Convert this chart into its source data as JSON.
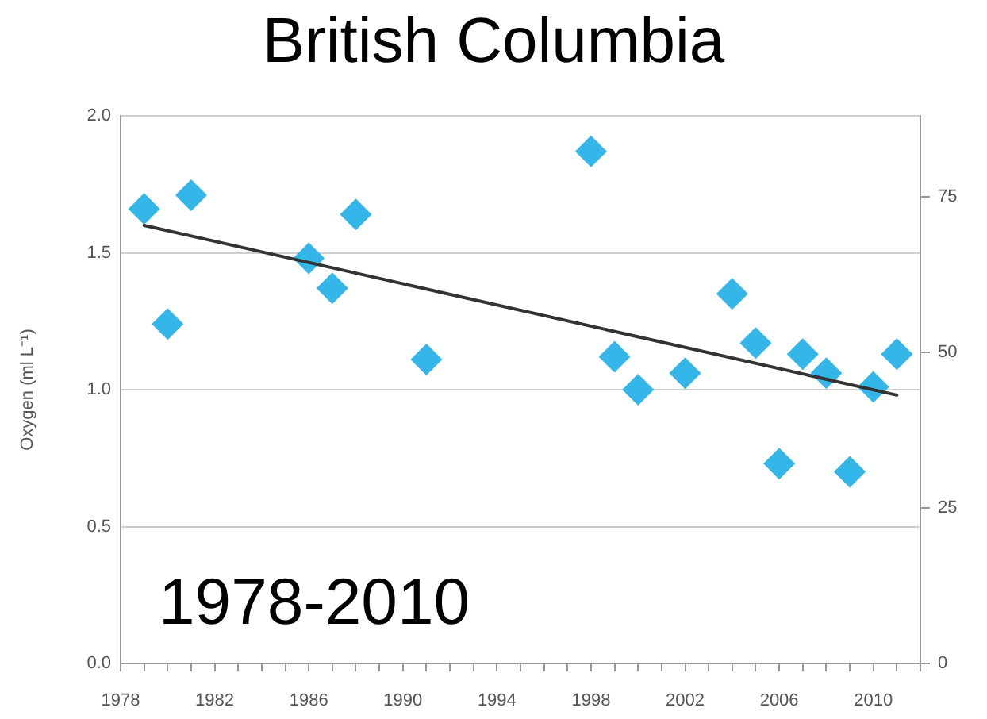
{
  "chart_data": {
    "type": "scatter",
    "title": "British Columbia",
    "ylabel": "Oxygen (ml L⁻¹)",
    "annotations": [
      "1978-2010"
    ],
    "xlim": [
      1978,
      2012
    ],
    "xticks": [
      1978,
      {
        "value": 1979,
        "label": null
      },
      {
        "value": 1980,
        "label": null
      },
      {
        "value": 1981,
        "label": null
      },
      1982,
      {
        "value": 1983,
        "label": null
      },
      {
        "value": 1984,
        "label": null
      },
      {
        "value": 1985,
        "label": null
      },
      1986,
      {
        "value": 1987,
        "label": null
      },
      {
        "value": 1988,
        "label": null
      },
      {
        "value": 1989,
        "label": null
      },
      1990,
      {
        "value": 1991,
        "label": null
      },
      {
        "value": 1992,
        "label": null
      },
      {
        "value": 1993,
        "label": null
      },
      1994,
      {
        "value": 1995,
        "label": null
      },
      {
        "value": 1996,
        "label": null
      },
      {
        "value": 1997,
        "label": null
      },
      1998,
      {
        "value": 1999,
        "label": null
      },
      {
        "value": 2000,
        "label": null
      },
      {
        "value": 2001,
        "label": null
      },
      2002,
      {
        "value": 2003,
        "label": null
      },
      {
        "value": 2004,
        "label": null
      },
      {
        "value": 2005,
        "label": null
      },
      2006,
      {
        "value": 2007,
        "label": null
      },
      {
        "value": 2008,
        "label": null
      },
      {
        "value": 2009,
        "label": null
      },
      2010,
      {
        "value": 2011,
        "label": null
      },
      {
        "value": 2012,
        "label": null
      }
    ],
    "ylim": [
      0,
      2
    ],
    "yticks": [
      {
        "value": 0,
        "label": "0.0"
      },
      0.5,
      {
        "value": 1,
        "label": "1.0"
      },
      1.5,
      {
        "value": 2,
        "label": "2.0"
      }
    ],
    "y2lim": [
      0,
      88
    ],
    "y2ticks": [
      0,
      25,
      50,
      75
    ],
    "grid": "y",
    "series": [
      {
        "color": "#35b6e8",
        "marker": "diamond",
        "x": [
          1979,
          1980,
          1981,
          1986,
          1987,
          1988,
          1991,
          1998,
          1999,
          2000,
          2002,
          2004,
          2005,
          2006,
          2007,
          2008,
          2009,
          2010,
          2011
        ],
        "values": [
          1.66,
          1.24,
          1.71,
          1.48,
          1.37,
          1.64,
          1.11,
          1.87,
          1.12,
          1.0,
          1.06,
          1.35,
          1.17,
          0.73,
          1.13,
          1.06,
          0.7,
          1.01,
          1.13
        ]
      },
      {
        "type": "line",
        "color": "#333333",
        "marker": "none",
        "x": [
          1979,
          2011
        ],
        "values": [
          1.6,
          0.98
        ]
      }
    ]
  }
}
